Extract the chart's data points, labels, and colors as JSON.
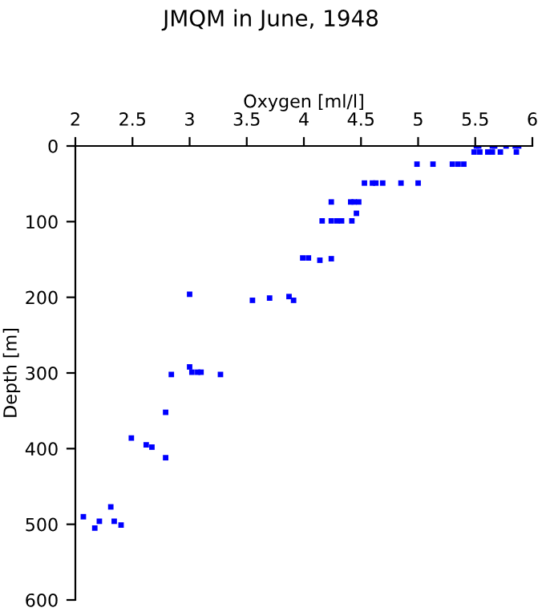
{
  "chart_data": {
    "type": "scatter",
    "title": "JMQM in June, 1948",
    "xlabel": "Oxygen [ml/l]",
    "ylabel": "Depth [m]",
    "x": [
      5.51,
      5.53,
      5.65,
      5.67,
      5.77,
      5.85,
      5.88,
      5.49,
      5.54,
      5.61,
      5.65,
      5.72,
      5.86,
      4.99,
      5.13,
      5.3,
      5.35,
      5.4,
      4.53,
      4.6,
      4.63,
      4.69,
      4.85,
      5.0,
      4.24,
      4.41,
      4.44,
      4.48,
      4.46,
      4.16,
      4.24,
      4.29,
      4.33,
      4.42,
      3.99,
      4.04,
      4.14,
      4.24,
      3.0,
      3.55,
      3.7,
      3.87,
      3.91,
      3.0,
      3.02,
      3.07,
      3.1,
      2.84,
      3.27,
      2.79,
      2.49,
      2.62,
      2.67,
      2.79,
      2.31,
      2.07,
      2.21,
      2.34,
      2.4,
      2.17
    ],
    "values": [
      0,
      0,
      0,
      0,
      0,
      0,
      0,
      8,
      8,
      8,
      8,
      8,
      8,
      24,
      24,
      24,
      24,
      24,
      49,
      49,
      49,
      49,
      49,
      49,
      74,
      74,
      74,
      74,
      89,
      99,
      99,
      99,
      99,
      99,
      148,
      148,
      151,
      149,
      196,
      204,
      201,
      199,
      204,
      292,
      299,
      299,
      299,
      302,
      302,
      352,
      386,
      395,
      398,
      412,
      477,
      490,
      496,
      496,
      501,
      505
    ],
    "color": "#0000ff",
    "marker": "square",
    "xlim": [
      2,
      6
    ],
    "xticks": [
      2,
      2.5,
      3,
      3.5,
      4,
      4.5,
      5,
      5.5,
      6
    ],
    "ylim": [
      600,
      0
    ],
    "yticks": [
      0,
      100,
      200,
      300,
      400,
      500,
      600
    ],
    "grid": false,
    "legend": false
  }
}
